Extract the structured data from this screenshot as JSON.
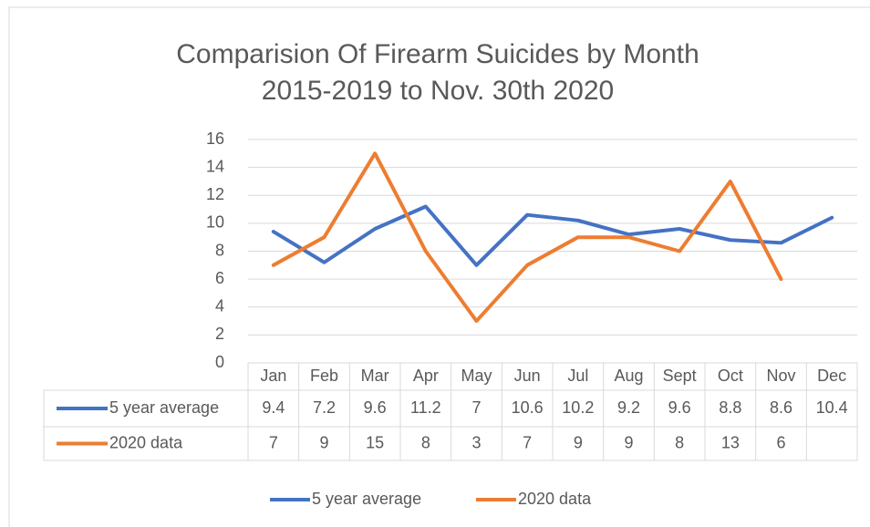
{
  "chart_data": {
    "type": "line",
    "title": "Comparision Of Firearm Suicides by Month 2015-2019 to Nov. 30th 2020",
    "categories": [
      "Jan",
      "Feb",
      "Mar",
      "Apr",
      "May",
      "Jun",
      "Jul",
      "Aug",
      "Sept",
      "Oct",
      "Nov",
      "Dec"
    ],
    "series": [
      {
        "name": "5 year average",
        "color": "#4472c4",
        "values": [
          9.4,
          7.2,
          9.6,
          11.2,
          7,
          10.6,
          10.2,
          9.2,
          9.6,
          8.8,
          8.6,
          10.4
        ]
      },
      {
        "name": "2020 data",
        "color": "#ed7d31",
        "values": [
          7,
          9,
          15,
          8,
          3,
          7,
          9,
          9,
          8,
          13,
          6,
          null
        ]
      }
    ],
    "ylim": [
      0,
      16
    ],
    "yticks": [
      0,
      2,
      4,
      6,
      8,
      10,
      12,
      14,
      16
    ],
    "grid": true,
    "data_table": true,
    "legend": "bottom"
  }
}
